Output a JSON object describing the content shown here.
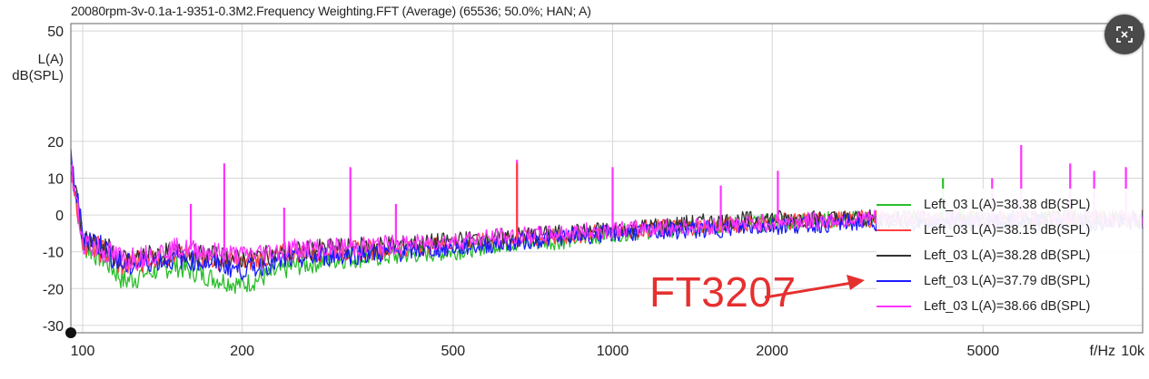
{
  "chart_data": {
    "type": "line",
    "title": "20080rpm-3v-0.1a-1-9351-0.3M2.Frequency Weighting.FFT (Average) (65536; 50.0%; HAN; A)",
    "ylabel_lines": [
      "L(A)",
      "dB(SPL)"
    ],
    "xlabel": "f/Hz",
    "x_scale": "log",
    "xlim": [
      95,
      10000
    ],
    "ylim": [
      -32,
      52
    ],
    "x_ticks": [
      {
        "value": 100,
        "label": "100"
      },
      {
        "value": 200,
        "label": "200"
      },
      {
        "value": 500,
        "label": "500"
      },
      {
        "value": 1000,
        "label": "1000"
      },
      {
        "value": 2000,
        "label": "2000"
      },
      {
        "value": 5000,
        "label": "5000"
      },
      {
        "value": 10000,
        "label": "10k"
      }
    ],
    "y_ticks": [
      {
        "value": 50,
        "label": "50"
      },
      {
        "value": 20,
        "label": "20"
      },
      {
        "value": 10,
        "label": "10"
      },
      {
        "value": 0,
        "label": "0"
      },
      {
        "value": -10,
        "label": "-10"
      },
      {
        "value": -20,
        "label": "-20"
      },
      {
        "value": -30,
        "label": "-30"
      }
    ],
    "grid": true,
    "legend_position": "lower-right",
    "x": [
      95,
      100,
      110,
      120,
      130,
      150,
      175,
      200,
      250,
      300,
      400,
      500,
      600,
      800,
      1000,
      1500,
      2000,
      3000,
      4000,
      6000,
      8000,
      10000
    ],
    "series": [
      {
        "name": "Left_03 L(A)=38.38 dB(SPL)",
        "color": "#2bbf2b",
        "values": [
          14,
          -8,
          -12,
          -18,
          -16,
          -14,
          -17,
          -19,
          -14,
          -12,
          -11,
          -10,
          -8,
          -7,
          -5,
          -3,
          -2,
          -1,
          -1,
          -1,
          -1,
          -1
        ]
      },
      {
        "name": "Left_03 L(A)=38.15 dB(SPL)",
        "color": "#ff4040",
        "values": [
          14,
          -7,
          -10,
          -14,
          -12,
          -11,
          -12,
          -13,
          -10,
          -10,
          -9,
          -8,
          -7,
          -6,
          -4,
          -3,
          -2,
          -1,
          -1,
          -1,
          -1,
          -1
        ]
      },
      {
        "name": "Left_03 L(A)=38.28 dB(SPL)",
        "color": "#333333",
        "values": [
          14,
          -6,
          -9,
          -13,
          -11,
          -10,
          -11,
          -12,
          -10,
          -9,
          -8,
          -7,
          -6,
          -5,
          -4,
          -2,
          -1,
          -1,
          -1,
          -1,
          -1,
          -1
        ]
      },
      {
        "name": "Left_03 L(A)=37.79 dB(SPL)",
        "color": "#1a1aff",
        "values": [
          15,
          -5,
          -9,
          -14,
          -13,
          -12,
          -13,
          -15,
          -12,
          -11,
          -10,
          -9,
          -8,
          -6,
          -5,
          -4,
          -3,
          -2,
          -2,
          -2,
          -2,
          -2
        ]
      },
      {
        "name": "Left_03 L(A)=38.66 dB(SPL)",
        "color": "#ff33ff",
        "values": [
          13,
          -7,
          -10,
          -12,
          -11,
          -9,
          -10,
          -11,
          -9,
          -9,
          -8,
          -7,
          -6,
          -5,
          -4,
          -3,
          -2,
          -1,
          -1,
          -1,
          -1,
          -1
        ]
      }
    ],
    "peaks": [
      {
        "series": 4,
        "x": 185,
        "y": 14
      },
      {
        "series": 4,
        "x": 160,
        "y": 3
      },
      {
        "series": 4,
        "x": 240,
        "y": 2
      },
      {
        "series": 4,
        "x": 320,
        "y": 13
      },
      {
        "series": 4,
        "x": 390,
        "y": 3
      },
      {
        "series": 4,
        "x": 660,
        "y": 15
      },
      {
        "series": 4,
        "x": 1000,
        "y": 13
      },
      {
        "series": 4,
        "x": 1600,
        "y": 8
      },
      {
        "series": 4,
        "x": 2050,
        "y": 12
      },
      {
        "series": 4,
        "x": 5200,
        "y": 10
      },
      {
        "series": 4,
        "x": 5900,
        "y": 19
      },
      {
        "series": 4,
        "x": 7300,
        "y": 14
      },
      {
        "series": 4,
        "x": 8100,
        "y": 12
      },
      {
        "series": 4,
        "x": 9300,
        "y": 13
      },
      {
        "series": 1,
        "x": 660,
        "y": 14
      },
      {
        "series": 0,
        "x": 4200,
        "y": 10
      }
    ],
    "annotation": "FT3207"
  },
  "colors": {
    "arrow": "#e53030",
    "grid": "#d6d6d6",
    "frame": "#555555"
  },
  "icons": {
    "zoom": "zoom-reset-icon"
  }
}
